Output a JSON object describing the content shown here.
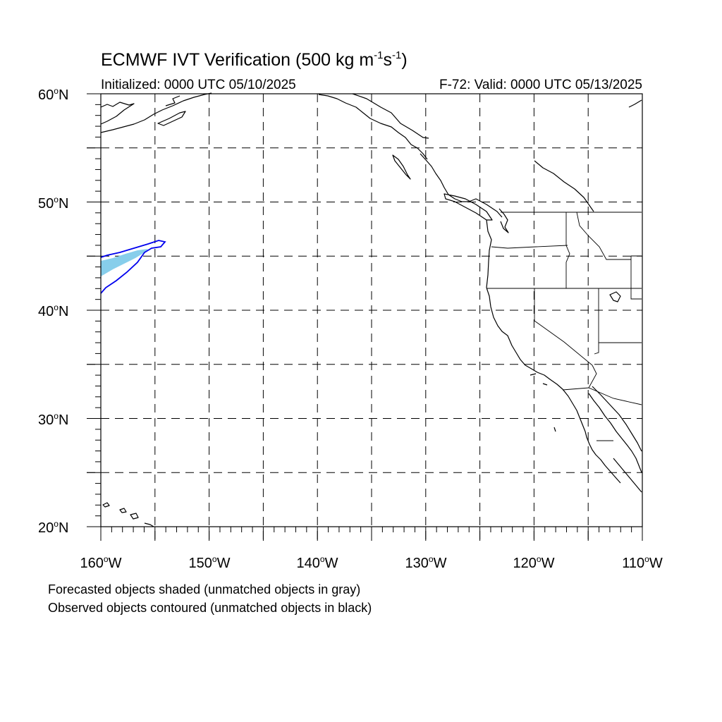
{
  "title": {
    "main": "ECMWF IVT Verification (500 kg m",
    "exp1": "-1",
    "mid": "s",
    "exp2": "-1",
    "close": ")"
  },
  "subtitle_left": "Initialized: 0000 UTC 05/10/2025",
  "subtitle_right": "F-72: Valid: 0000 UTC 05/13/2025",
  "y_axis": [
    {
      "num": "60",
      "hemi": "N"
    },
    {
      "num": "50",
      "hemi": "N"
    },
    {
      "num": "40",
      "hemi": "N"
    },
    {
      "num": "30",
      "hemi": "N"
    },
    {
      "num": "20",
      "hemi": "N"
    }
  ],
  "x_axis": [
    {
      "num": "160",
      "hemi": "W"
    },
    {
      "num": "150",
      "hemi": "W"
    },
    {
      "num": "140",
      "hemi": "W"
    },
    {
      "num": "130",
      "hemi": "W"
    },
    {
      "num": "120",
      "hemi": "W"
    },
    {
      "num": "110",
      "hemi": "W"
    }
  ],
  "degree_symbol": "o",
  "notes": [
    "Forecasted objects shaded (unmatched objects in gray)",
    "Observed objects contoured (unmatched objects in black)"
  ],
  "map": {
    "lon_range": [
      -160,
      -110
    ],
    "lat_range": [
      20,
      60
    ],
    "grid_spacing_deg": 5,
    "forecast_fill_color": "#87ceeb",
    "observed_contour_color": "#0000ee"
  }
}
